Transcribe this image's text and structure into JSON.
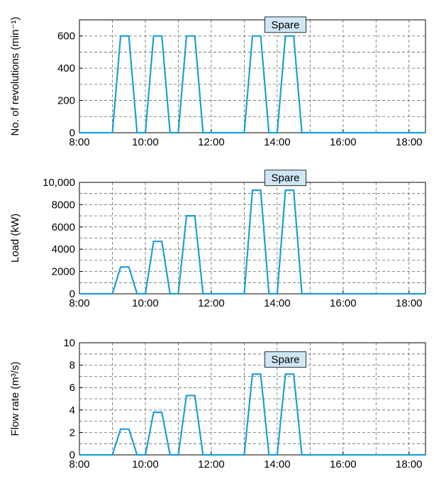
{
  "colors": {
    "line": "#1aa0d8",
    "annotation_bg": "#cfe6f5"
  },
  "chart_data": [
    {
      "type": "line",
      "ylabel": "No. of revolutions (min⁻¹)",
      "xlim": [
        8,
        18.5
      ],
      "ylim": [
        0,
        700
      ],
      "x_ticks": [
        8,
        10,
        12,
        14,
        16,
        18
      ],
      "x_tick_labels": [
        "8:00",
        "10:00",
        "12:00",
        "14:00",
        "16:00",
        "18:00"
      ],
      "y_ticks": [
        0,
        200,
        400,
        600
      ],
      "y_tick_labels": [
        "0",
        "200",
        "400",
        "600"
      ],
      "y_grid": [
        0,
        100,
        200,
        300,
        400,
        500,
        600,
        700
      ],
      "grid": true,
      "annotation": {
        "text": "Spare",
        "x": 14.25,
        "y": 670
      },
      "series": [
        {
          "x": [
            8,
            9,
            9.25,
            9.5,
            9.75,
            10,
            10.25,
            10.5,
            10.75,
            11,
            11.25,
            11.5,
            11.75,
            13.0,
            13.25,
            13.5,
            13.75,
            14.0,
            14.25,
            14.5,
            14.75,
            18.5
          ],
          "y": [
            0,
            0,
            600,
            600,
            0,
            0,
            600,
            600,
            0,
            0,
            600,
            600,
            0,
            0,
            600,
            600,
            0,
            0,
            600,
            600,
            0,
            0
          ]
        }
      ]
    },
    {
      "type": "line",
      "ylabel": "Load (kW)",
      "xlim": [
        8,
        18.5
      ],
      "ylim": [
        0,
        10000
      ],
      "x_ticks": [
        8,
        10,
        12,
        14,
        16,
        18
      ],
      "x_tick_labels": [
        "8:00",
        "10:00",
        "12:00",
        "14:00",
        "16:00",
        "18:00"
      ],
      "y_ticks": [
        0,
        2000,
        4000,
        6000,
        8000,
        10000
      ],
      "y_tick_labels": [
        "0",
        "2000",
        "4000",
        "6000",
        "8000",
        "10,000"
      ],
      "y_grid": [
        0,
        1000,
        2000,
        3000,
        4000,
        5000,
        6000,
        7000,
        8000,
        9000,
        10000
      ],
      "grid": true,
      "annotation": {
        "text": "Spare",
        "x": 14.25,
        "y": 10400
      },
      "series": [
        {
          "x": [
            8,
            9,
            9.25,
            9.5,
            9.75,
            10,
            10.25,
            10.5,
            10.75,
            11,
            11.25,
            11.5,
            11.75,
            13.0,
            13.25,
            13.5,
            13.75,
            14.0,
            14.25,
            14.5,
            14.75,
            18.5
          ],
          "y": [
            0,
            0,
            2400,
            2400,
            0,
            0,
            4700,
            4700,
            0,
            0,
            7000,
            7000,
            0,
            0,
            9300,
            9300,
            0,
            0,
            9300,
            9300,
            0,
            0
          ]
        }
      ]
    },
    {
      "type": "line",
      "ylabel": "Flow rate (m³/s)",
      "xlim": [
        8,
        18.5
      ],
      "ylim": [
        0,
        10
      ],
      "x_ticks": [
        8,
        10,
        12,
        14,
        16,
        18
      ],
      "x_tick_labels": [
        "8:00",
        "10:00",
        "12:00",
        "14:00",
        "16:00",
        "18:00"
      ],
      "y_ticks": [
        0,
        2,
        4,
        6,
        8,
        10
      ],
      "y_tick_labels": [
        "0",
        "2",
        "4",
        "6",
        "8",
        "10"
      ],
      "y_grid": [
        0,
        1,
        2,
        3,
        4,
        5,
        6,
        7,
        8,
        9,
        10
      ],
      "grid": true,
      "annotation": {
        "text": "Spare",
        "x": 14.25,
        "y": 8.5
      },
      "series": [
        {
          "x": [
            8,
            9,
            9.25,
            9.5,
            9.75,
            10,
            10.25,
            10.5,
            10.75,
            11,
            11.25,
            11.5,
            11.75,
            13.0,
            13.25,
            13.5,
            13.75,
            14.0,
            14.25,
            14.5,
            14.75,
            18.5
          ],
          "y": [
            0,
            0,
            2.3,
            2.3,
            0,
            0,
            3.8,
            3.8,
            0,
            0,
            5.3,
            5.3,
            0,
            0,
            7.2,
            7.2,
            0,
            0,
            7.2,
            7.2,
            0,
            0
          ]
        }
      ]
    }
  ]
}
